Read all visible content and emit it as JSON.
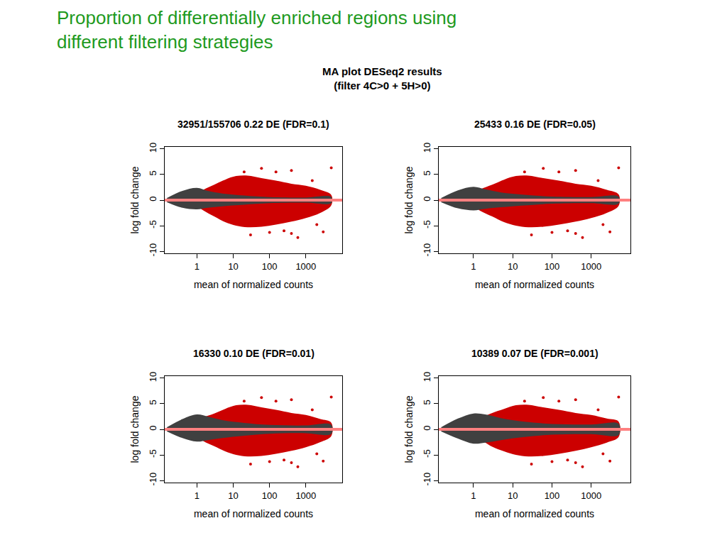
{
  "page_title": [
    "Proportion of differentially enriched regions using",
    "different filtering strategies"
  ],
  "figure_title": [
    "MA plot DESeq2 results",
    "(filter 4C>0 + 5H>0)"
  ],
  "chart_data": [
    {
      "type": "scatter",
      "title": "32951/155706 0.22 DE (FDR=0.1)",
      "xlabel": "mean of normalized counts",
      "ylabel": "log fold change",
      "log": "x",
      "xlim": [
        0.13,
        10000
      ],
      "xticks": [
        1,
        10,
        100,
        1000
      ],
      "ylim": [
        -10.4,
        10.4
      ],
      "yticks": [
        -10,
        -5,
        0,
        5,
        10
      ],
      "series": [
        {
          "type": "area",
          "color": "#cc0000",
          "x": [
            0.8,
            1.5,
            3,
            6,
            12,
            25,
            60,
            150,
            400,
            1000,
            2500,
            5000,
            5000,
            2500,
            1000,
            400,
            150,
            60,
            25,
            12,
            6,
            3,
            1.5,
            0.8
          ],
          "values": [
            0.8,
            2,
            3,
            4,
            4.7,
            4.8,
            4.3,
            3.8,
            3.2,
            2.8,
            2,
            1,
            -1,
            -2.5,
            -3.5,
            -4.2,
            -4.8,
            -5.2,
            -5.3,
            -5,
            -4.3,
            -3.2,
            -2,
            -0.8
          ]
        },
        {
          "type": "area",
          "color": "#404040",
          "x": [
            0.15,
            0.4,
            1,
            2,
            5,
            20,
            100,
            1000,
            5000,
            5000,
            1000,
            100,
            20,
            5,
            2,
            1,
            0.4,
            0.15
          ],
          "values": [
            0.4,
            1.8,
            2.4,
            1.8,
            1.3,
            0.9,
            0.6,
            0.5,
            0.6,
            -0.6,
            -0.5,
            -0.6,
            -0.9,
            -1.2,
            -1.5,
            -1.8,
            -1.5,
            -0.4
          ]
        },
        {
          "type": "line",
          "color": "#ff8080",
          "x": [
            0.13,
            10000
          ],
          "values": [
            0,
            0
          ]
        },
        {
          "type": "scatter",
          "color": "#cc0000",
          "x": [
            20,
            60,
            150,
            400,
            5000,
            30,
            100,
            250,
            400,
            600,
            2000,
            3000,
            1500
          ],
          "values": [
            5.5,
            6.2,
            5.5,
            5.8,
            6.3,
            -6.8,
            -6.3,
            -6,
            -6.5,
            -7.3,
            -4.8,
            -6.2,
            3.8
          ]
        }
      ]
    },
    {
      "type": "scatter",
      "title": "25433 0.16 DE (FDR=0.05)",
      "xlabel": "mean of normalized counts",
      "ylabel": "log fold change",
      "log": "x",
      "xlim": [
        0.13,
        10000
      ],
      "xticks": [
        1,
        10,
        100,
        1000
      ],
      "ylim": [
        -10.4,
        10.4
      ],
      "yticks": [
        -10,
        -5,
        0,
        5,
        10
      ],
      "series": [
        {
          "type": "area",
          "color": "#cc0000",
          "x": [
            0.9,
            1.5,
            3,
            6,
            12,
            25,
            60,
            150,
            400,
            1000,
            2500,
            5000,
            5000,
            2500,
            1000,
            400,
            150,
            60,
            25,
            12,
            6,
            3,
            1.5,
            0.9
          ],
          "values": [
            1,
            2.1,
            3,
            4,
            4.7,
            4.8,
            4.3,
            3.8,
            3.2,
            2.8,
            2,
            1.1,
            -1.1,
            -2.5,
            -3.5,
            -4.2,
            -4.8,
            -5.2,
            -5.3,
            -5,
            -4.3,
            -3.2,
            -2.1,
            -1
          ]
        },
        {
          "type": "area",
          "color": "#404040",
          "x": [
            0.15,
            0.4,
            1,
            2,
            5,
            20,
            100,
            1000,
            5000,
            5000,
            1000,
            100,
            20,
            5,
            2,
            1,
            0.4,
            0.15
          ],
          "values": [
            0.4,
            1.9,
            2.6,
            2.1,
            1.5,
            1.05,
            0.7,
            0.6,
            0.7,
            -0.7,
            -0.6,
            -0.7,
            -1.05,
            -1.4,
            -1.7,
            -2,
            -1.6,
            -0.4
          ]
        },
        {
          "type": "line",
          "color": "#ff8080",
          "x": [
            0.13,
            10000
          ],
          "values": [
            0,
            0
          ]
        },
        {
          "type": "scatter",
          "color": "#cc0000",
          "x": [
            20,
            60,
            150,
            400,
            5000,
            30,
            100,
            250,
            400,
            600,
            2000,
            3000,
            1500
          ],
          "values": [
            5.5,
            6.2,
            5.5,
            5.8,
            6.3,
            -6.8,
            -6.3,
            -6,
            -6.5,
            -7.3,
            -4.8,
            -6.2,
            3.8
          ]
        }
      ]
    },
    {
      "type": "scatter",
      "title": "16330 0.10 DE (FDR=0.01)",
      "xlabel": "mean of normalized counts",
      "ylabel": "log fold change",
      "log": "x",
      "xlim": [
        0.13,
        10000
      ],
      "xticks": [
        1,
        10,
        100,
        1000
      ],
      "ylim": [
        -10.4,
        10.4
      ],
      "yticks": [
        -10,
        -5,
        0,
        5,
        10
      ],
      "series": [
        {
          "type": "area",
          "color": "#cc0000",
          "x": [
            1,
            1.5,
            3,
            6,
            12,
            25,
            60,
            150,
            400,
            1000,
            2500,
            5000,
            5000,
            2500,
            1000,
            400,
            150,
            60,
            25,
            12,
            6,
            3,
            1.5,
            1
          ],
          "values": [
            1.2,
            2.3,
            3.1,
            4,
            4.7,
            4.8,
            4.3,
            3.8,
            3.2,
            2.8,
            2,
            1.3,
            -1.3,
            -2.5,
            -3.5,
            -4.2,
            -4.8,
            -5.2,
            -5.3,
            -5,
            -4.3,
            -3.3,
            -2.3,
            -1.2
          ]
        },
        {
          "type": "area",
          "color": "#404040",
          "x": [
            0.15,
            0.4,
            1,
            2,
            5,
            20,
            100,
            1000,
            5000,
            5000,
            1000,
            100,
            20,
            5,
            2,
            1,
            0.4,
            0.15
          ],
          "values": [
            0.4,
            2,
            2.9,
            2.5,
            1.8,
            1.25,
            0.85,
            0.75,
            0.9,
            -0.9,
            -0.75,
            -0.85,
            -1.25,
            -1.7,
            -2.1,
            -2.4,
            -1.7,
            -0.4
          ]
        },
        {
          "type": "line",
          "color": "#ff8080",
          "x": [
            0.13,
            10000
          ],
          "values": [
            0,
            0
          ]
        },
        {
          "type": "scatter",
          "color": "#cc0000",
          "x": [
            20,
            60,
            150,
            400,
            5000,
            30,
            100,
            250,
            400,
            600,
            2000,
            3000,
            1500
          ],
          "values": [
            5.5,
            6.2,
            5.5,
            5.8,
            6.3,
            -6.8,
            -6.3,
            -6,
            -6.5,
            -7.3,
            -4.8,
            -6.2,
            3.8
          ]
        }
      ]
    },
    {
      "type": "scatter",
      "title": "10389 0.07 DE (FDR=0.001)",
      "xlabel": "mean of normalized counts",
      "ylabel": "log fold change",
      "log": "x",
      "xlim": [
        0.13,
        10000
      ],
      "xticks": [
        1,
        10,
        100,
        1000
      ],
      "ylim": [
        -10.4,
        10.4
      ],
      "yticks": [
        -10,
        -5,
        0,
        5,
        10
      ],
      "series": [
        {
          "type": "area",
          "color": "#cc0000",
          "x": [
            1.2,
            2,
            3,
            6,
            12,
            25,
            60,
            150,
            400,
            1000,
            2500,
            5000,
            5000,
            2500,
            1000,
            400,
            150,
            60,
            25,
            12,
            6,
            3,
            2,
            1.2
          ],
          "values": [
            1.5,
            2.6,
            3.2,
            4,
            4.7,
            4.8,
            4.3,
            3.8,
            3.2,
            2.8,
            2.1,
            1.5,
            -1.5,
            -2.6,
            -3.5,
            -4.2,
            -4.8,
            -5.2,
            -5.3,
            -5,
            -4.3,
            -3.4,
            -2.6,
            -1.5
          ]
        },
        {
          "type": "area",
          "color": "#404040",
          "x": [
            0.15,
            0.4,
            1,
            2,
            5,
            20,
            100,
            1000,
            5000,
            5000,
            1000,
            100,
            20,
            5,
            2,
            1,
            0.4,
            0.15
          ],
          "values": [
            0.4,
            2.1,
            3.1,
            2.9,
            2.2,
            1.5,
            1.05,
            0.95,
            1.1,
            -1.1,
            -0.95,
            -1.05,
            -1.5,
            -2.1,
            -2.6,
            -2.8,
            -1.8,
            -0.4
          ]
        },
        {
          "type": "line",
          "color": "#ff8080",
          "x": [
            0.13,
            10000
          ],
          "values": [
            0,
            0
          ]
        },
        {
          "type": "scatter",
          "color": "#cc0000",
          "x": [
            20,
            60,
            150,
            400,
            5000,
            30,
            100,
            250,
            400,
            600,
            2000,
            3000,
            1500
          ],
          "values": [
            5.5,
            6.2,
            5.5,
            5.8,
            6.3,
            -6.8,
            -6.3,
            -6,
            -6.5,
            -7.3,
            -4.8,
            -6.2,
            3.8
          ]
        }
      ]
    }
  ]
}
